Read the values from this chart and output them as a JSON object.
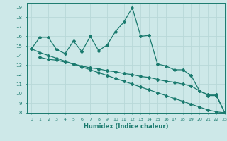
{
  "line1_x": [
    0,
    1,
    2,
    3,
    4,
    5,
    6,
    7,
    8,
    9,
    10,
    11,
    12,
    13,
    14,
    15,
    16,
    17,
    18,
    19,
    20,
    21,
    22,
    23
  ],
  "line1_y": [
    14.7,
    15.9,
    15.9,
    14.6,
    14.2,
    15.5,
    14.4,
    16.0,
    14.5,
    15.1,
    16.5,
    17.5,
    19.0,
    16.0,
    16.1,
    13.1,
    12.9,
    12.5,
    12.5,
    11.9,
    10.3,
    9.9,
    9.9,
    8.0
  ],
  "line2_x": [
    1,
    2,
    3,
    4,
    5,
    6,
    7,
    8,
    9,
    10,
    11,
    12,
    13,
    14,
    15,
    16,
    17,
    18,
    19,
    20,
    21,
    22,
    23
  ],
  "line2_y": [
    13.8,
    13.6,
    13.5,
    13.3,
    13.1,
    12.9,
    12.7,
    12.6,
    12.4,
    12.3,
    12.1,
    12.0,
    11.8,
    11.7,
    11.5,
    11.3,
    11.2,
    11.0,
    10.8,
    10.3,
    9.8,
    9.8,
    8.0
  ],
  "line3_x": [
    0,
    1,
    2,
    3,
    4,
    5,
    6,
    7,
    8,
    9,
    10,
    11,
    12,
    13,
    14,
    15,
    16,
    17,
    18,
    19,
    20,
    21,
    22,
    23
  ],
  "line3_y": [
    14.7,
    14.3,
    14.0,
    13.7,
    13.4,
    13.1,
    12.8,
    12.5,
    12.2,
    11.9,
    11.6,
    11.3,
    11.0,
    10.7,
    10.4,
    10.1,
    9.8,
    9.5,
    9.2,
    8.9,
    8.6,
    8.3,
    8.1,
    8.0
  ],
  "line_color": "#1a7a6e",
  "bg_color": "#cde8e8",
  "grid_color": "#b8d8d8",
  "xlabel": "Humidex (Indice chaleur)",
  "ylim": [
    8,
    19.5
  ],
  "xlim": [
    -0.5,
    23
  ],
  "yticks": [
    8,
    9,
    10,
    11,
    12,
    13,
    14,
    15,
    16,
    17,
    18,
    19
  ],
  "xticks": [
    0,
    1,
    2,
    3,
    4,
    5,
    6,
    7,
    8,
    9,
    10,
    11,
    12,
    13,
    14,
    15,
    16,
    17,
    18,
    19,
    20,
    21,
    22,
    23
  ],
  "marker": "D",
  "markersize": 2.0,
  "linewidth": 0.9
}
